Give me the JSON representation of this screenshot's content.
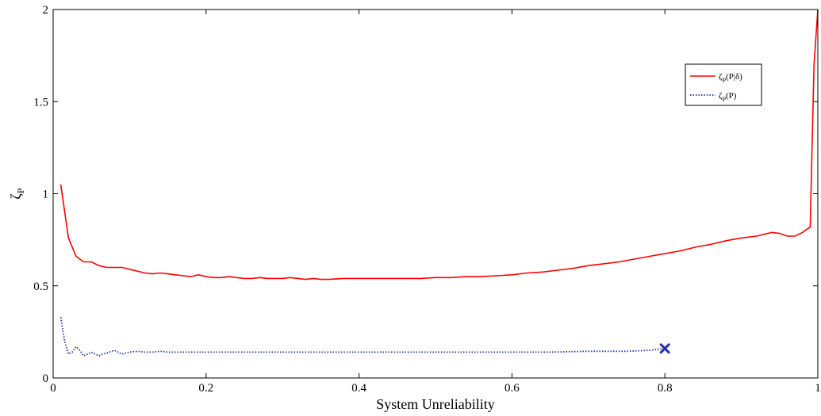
{
  "chart_data": {
    "type": "line",
    "xlabel": "System Unreliability",
    "ylabel_symbol": "ζ",
    "ylabel_sub": "P",
    "xlim": [
      0,
      1
    ],
    "ylim": [
      0,
      2
    ],
    "xticks": [
      {
        "value": 0,
        "label": "0"
      },
      {
        "value": 0.2,
        "label": "0.2"
      },
      {
        "value": 0.4,
        "label": "0.4"
      },
      {
        "value": 0.6,
        "label": "0.6"
      },
      {
        "value": 0.8,
        "label": "0.8"
      },
      {
        "value": 1,
        "label": "1"
      }
    ],
    "yticks": [
      {
        "value": 0,
        "label": "0"
      },
      {
        "value": 0.5,
        "label": "0.5"
      },
      {
        "value": 1,
        "label": "1"
      },
      {
        "value": 1.5,
        "label": "1.5"
      },
      {
        "value": 2,
        "label": "2"
      }
    ],
    "legend_position": "top-right",
    "series": [
      {
        "name": "ζP(P|δ)",
        "legend": {
          "symbol": "ζ",
          "sub": "P",
          "arg": "(P|δ)"
        },
        "color": "#ff0000",
        "style": "solid",
        "points": [
          [
            0.01,
            1.05
          ],
          [
            0.02,
            0.76
          ],
          [
            0.03,
            0.66
          ],
          [
            0.04,
            0.63
          ],
          [
            0.05,
            0.63
          ],
          [
            0.06,
            0.61
          ],
          [
            0.07,
            0.6
          ],
          [
            0.08,
            0.6
          ],
          [
            0.09,
            0.6
          ],
          [
            0.1,
            0.59
          ],
          [
            0.11,
            0.58
          ],
          [
            0.12,
            0.57
          ],
          [
            0.13,
            0.565
          ],
          [
            0.14,
            0.57
          ],
          [
            0.15,
            0.565
          ],
          [
            0.16,
            0.56
          ],
          [
            0.17,
            0.555
          ],
          [
            0.18,
            0.55
          ],
          [
            0.19,
            0.56
          ],
          [
            0.2,
            0.55
          ],
          [
            0.21,
            0.545
          ],
          [
            0.22,
            0.545
          ],
          [
            0.23,
            0.55
          ],
          [
            0.24,
            0.545
          ],
          [
            0.25,
            0.54
          ],
          [
            0.26,
            0.54
          ],
          [
            0.27,
            0.545
          ],
          [
            0.28,
            0.54
          ],
          [
            0.29,
            0.54
          ],
          [
            0.3,
            0.54
          ],
          [
            0.31,
            0.545
          ],
          [
            0.32,
            0.54
          ],
          [
            0.33,
            0.535
          ],
          [
            0.34,
            0.54
          ],
          [
            0.35,
            0.535
          ],
          [
            0.36,
            0.535
          ],
          [
            0.38,
            0.54
          ],
          [
            0.4,
            0.54
          ],
          [
            0.42,
            0.54
          ],
          [
            0.44,
            0.54
          ],
          [
            0.46,
            0.54
          ],
          [
            0.48,
            0.54
          ],
          [
            0.5,
            0.545
          ],
          [
            0.52,
            0.545
          ],
          [
            0.54,
            0.55
          ],
          [
            0.56,
            0.55
          ],
          [
            0.58,
            0.555
          ],
          [
            0.6,
            0.56
          ],
          [
            0.62,
            0.57
          ],
          [
            0.64,
            0.575
          ],
          [
            0.66,
            0.585
          ],
          [
            0.68,
            0.595
          ],
          [
            0.7,
            0.61
          ],
          [
            0.72,
            0.62
          ],
          [
            0.74,
            0.63
          ],
          [
            0.76,
            0.645
          ],
          [
            0.78,
            0.66
          ],
          [
            0.8,
            0.675
          ],
          [
            0.82,
            0.69
          ],
          [
            0.84,
            0.71
          ],
          [
            0.86,
            0.725
          ],
          [
            0.88,
            0.745
          ],
          [
            0.9,
            0.76
          ],
          [
            0.92,
            0.77
          ],
          [
            0.93,
            0.78
          ],
          [
            0.94,
            0.79
          ],
          [
            0.95,
            0.785
          ],
          [
            0.96,
            0.77
          ],
          [
            0.97,
            0.77
          ],
          [
            0.98,
            0.79
          ],
          [
            0.99,
            0.82
          ],
          [
            0.995,
            1.7
          ],
          [
            1.0,
            2.0
          ]
        ]
      },
      {
        "name": "ζP(P)",
        "legend": {
          "symbol": "ζ",
          "sub": "P",
          "arg": "(P)"
        },
        "color": "#2233aa",
        "style": "dotted",
        "points": [
          [
            0.01,
            0.33
          ],
          [
            0.015,
            0.2
          ],
          [
            0.02,
            0.13
          ],
          [
            0.025,
            0.14
          ],
          [
            0.03,
            0.17
          ],
          [
            0.035,
            0.15
          ],
          [
            0.04,
            0.12
          ],
          [
            0.045,
            0.13
          ],
          [
            0.05,
            0.14
          ],
          [
            0.055,
            0.13
          ],
          [
            0.06,
            0.12
          ],
          [
            0.065,
            0.13
          ],
          [
            0.07,
            0.135
          ],
          [
            0.08,
            0.15
          ],
          [
            0.09,
            0.13
          ],
          [
            0.1,
            0.14
          ],
          [
            0.11,
            0.145
          ],
          [
            0.12,
            0.14
          ],
          [
            0.13,
            0.14
          ],
          [
            0.14,
            0.145
          ],
          [
            0.15,
            0.14
          ],
          [
            0.16,
            0.14
          ],
          [
            0.18,
            0.14
          ],
          [
            0.2,
            0.14
          ],
          [
            0.25,
            0.14
          ],
          [
            0.3,
            0.14
          ],
          [
            0.35,
            0.14
          ],
          [
            0.4,
            0.14
          ],
          [
            0.45,
            0.14
          ],
          [
            0.5,
            0.14
          ],
          [
            0.55,
            0.14
          ],
          [
            0.6,
            0.14
          ],
          [
            0.65,
            0.14
          ],
          [
            0.7,
            0.145
          ],
          [
            0.75,
            0.145
          ],
          [
            0.78,
            0.15
          ],
          [
            0.8,
            0.16
          ]
        ],
        "end_marker": {
          "x": 0.8,
          "y": 0.16,
          "shape": "x"
        }
      }
    ]
  }
}
